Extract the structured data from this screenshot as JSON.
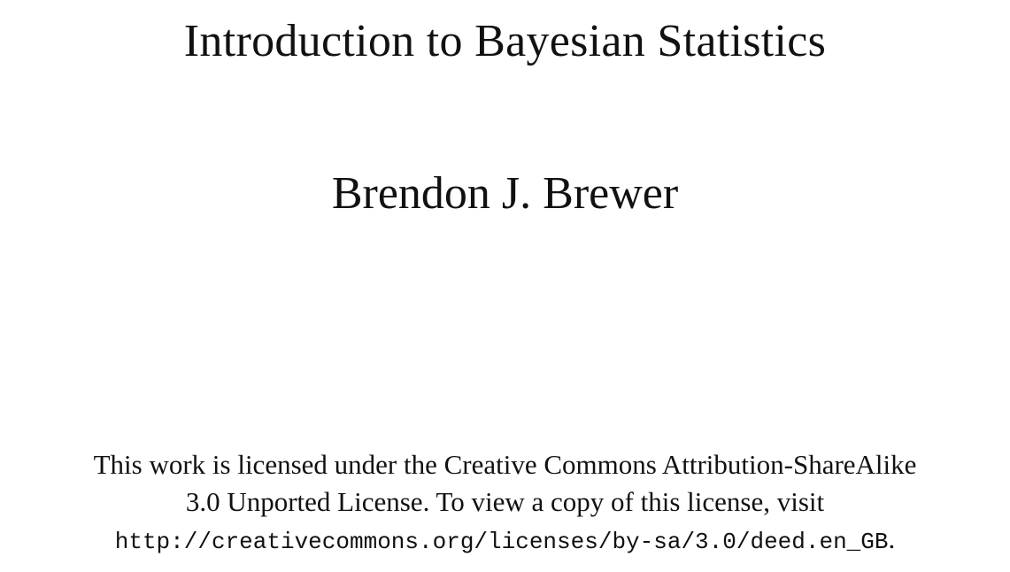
{
  "document": {
    "title": "Introduction to Bayesian Statistics",
    "author": "Brendon J. Brewer",
    "license": {
      "line1": "This work is licensed under the Creative Commons Attribution-ShareAlike",
      "line2": "3.0 Unported License. To view a copy of this license, visit",
      "url": "http://creativecommons.org/licenses/by-sa/3.0/deed.en_GB",
      "trailing": "."
    }
  }
}
